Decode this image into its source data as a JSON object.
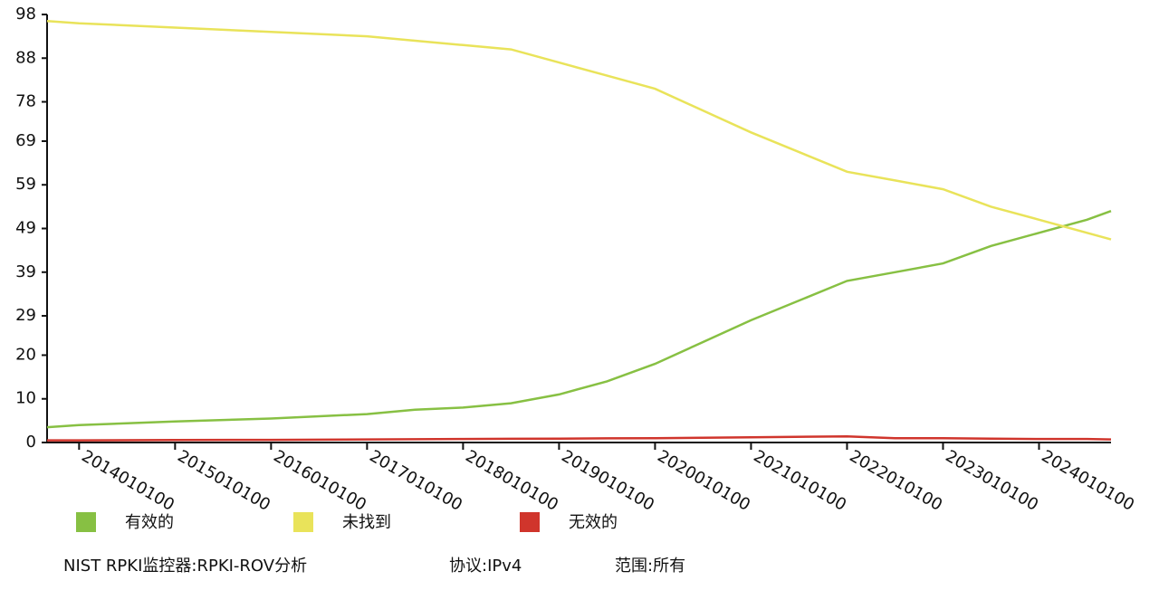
{
  "chart_data": {
    "type": "line",
    "x": [
      "2013090100",
      "2014010100",
      "2015010100",
      "2016010100",
      "2017010100",
      "2017070100",
      "2018010100",
      "2018070100",
      "2019010100",
      "2019070100",
      "2020010100",
      "2021010100",
      "2022010100",
      "2022070100",
      "2023010100",
      "2023070100",
      "2024010100",
      "2024070100",
      "2024100100"
    ],
    "series": [
      {
        "name": "有效的",
        "color": "#87c043",
        "values": [
          3.5,
          4,
          4.8,
          5.5,
          6.5,
          7.5,
          8,
          9,
          11,
          14,
          18,
          28,
          37,
          39,
          41,
          45,
          48,
          51,
          53
        ]
      },
      {
        "name": "未找到",
        "color": "#e9e35a",
        "values": [
          96.5,
          96,
          95,
          94,
          93,
          92,
          91,
          90,
          87,
          84,
          81,
          71,
          62,
          60,
          58,
          54,
          51,
          48,
          46.5
        ]
      },
      {
        "name": "无效的",
        "color": "#d0352c",
        "values": [
          0.5,
          0.5,
          0.55,
          0.6,
          0.7,
          0.75,
          0.8,
          0.85,
          0.9,
          0.95,
          1.0,
          1.2,
          1.4,
          1.0,
          1.0,
          0.9,
          0.8,
          0.8,
          0.7
        ]
      }
    ],
    "xlim": [
      "2013090100",
      "2024100100"
    ],
    "xticks": [
      "2014010100",
      "2015010100",
      "2016010100",
      "2017010100",
      "2018010100",
      "2019010100",
      "2020010100",
      "2021010100",
      "2022010100",
      "2023010100",
      "2024010100"
    ],
    "ylim": [
      0,
      98
    ],
    "yticks": [
      0,
      10,
      20,
      29,
      39,
      49,
      59,
      69,
      78,
      88,
      98
    ],
    "notes": [
      "NIST RPKI监控器:RPKI-ROV分析",
      "协议:IPv4",
      "范围:所有"
    ]
  }
}
